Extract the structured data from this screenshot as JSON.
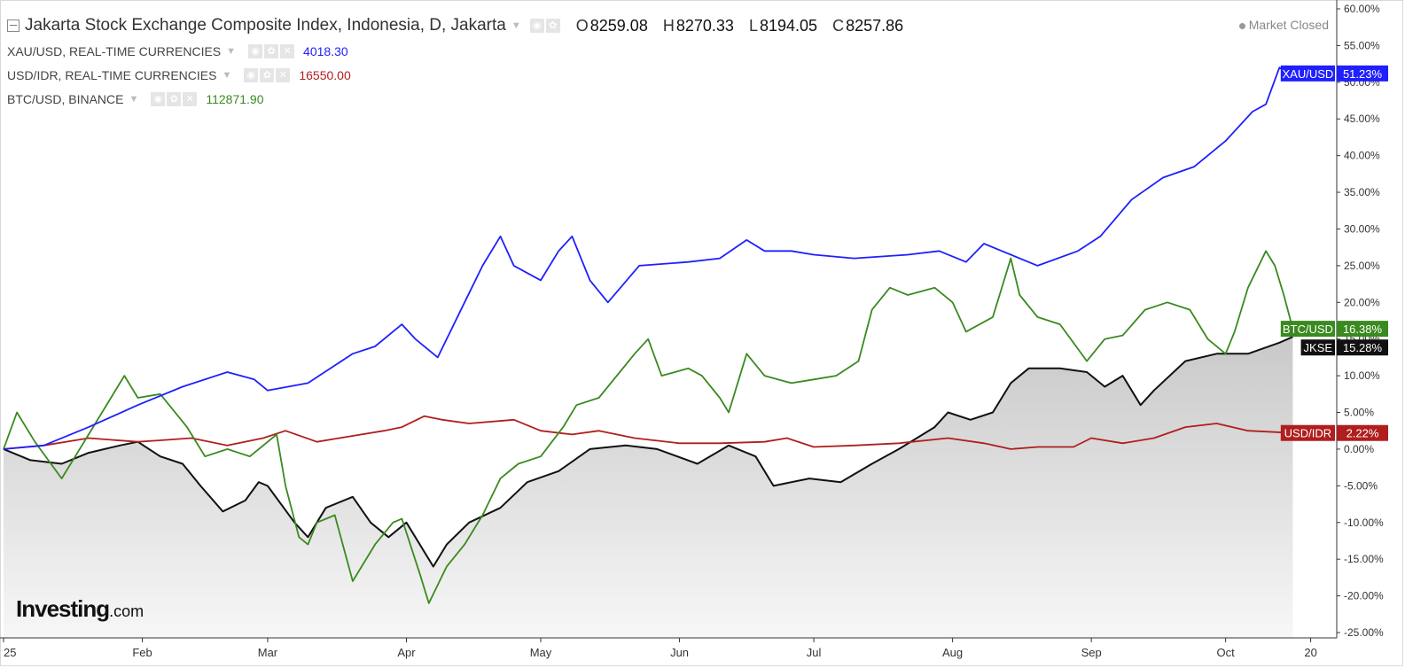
{
  "header": {
    "title": "Jakarta Stock Exchange Composite Index, Indonesia, D, Jakarta",
    "ohlc": [
      {
        "k": "O",
        "v": "8259.08"
      },
      {
        "k": "H",
        "v": "8270.33"
      },
      {
        "k": "L",
        "v": "8194.05"
      },
      {
        "k": "C",
        "v": "8257.86"
      }
    ],
    "status": "Market Closed"
  },
  "overlays": [
    {
      "label": "XAU/USD, REAL-TIME CURRENCIES",
      "value": "4018.30",
      "color": "#1f1fff"
    },
    {
      "label": "USD/IDR, REAL-TIME CURRENCIES",
      "value": "16550.00",
      "color": "#b01e1e"
    },
    {
      "label": "BTC/USD, BINANCE",
      "value": "112871.90",
      "color": "#3a8a1f"
    }
  ],
  "logo": {
    "main": "Investing",
    "suffix": ".com"
  },
  "icons": [
    "collapse-icon",
    "eye-icon",
    "gear-icon",
    "close-icon",
    "chevron-down-icon"
  ],
  "chart_data": {
    "type": "line",
    "ylabel": "",
    "ylim": [
      -25,
      60
    ],
    "x_axis": "date",
    "x_tick_labels": [
      "25",
      "Feb",
      "Mar",
      "Apr",
      "May",
      "Jun",
      "Jul",
      "Aug",
      "Sep",
      "Oct",
      "20"
    ],
    "y_tick_labels": [
      "60.00%",
      "55.00%",
      "50.00%",
      "45.00%",
      "40.00%",
      "35.00%",
      "30.00%",
      "25.00%",
      "20.00%",
      "15.00%",
      "10.00%",
      "5.00%",
      "0.00%",
      "-5.00%",
      "-10.00%",
      "-15.00%",
      "-20.00%",
      "-25.00%"
    ],
    "grid": false,
    "series": [
      {
        "name": "XAU/USD",
        "color": "#1f1fff",
        "end_label": "51.23%",
        "points": [
          [
            "2025-01-01",
            0
          ],
          [
            "2025-01-10",
            0.5
          ],
          [
            "2025-01-20",
            3
          ],
          [
            "2025-01-31",
            6
          ],
          [
            "2025-02-10",
            8.5
          ],
          [
            "2025-02-20",
            10.5
          ],
          [
            "2025-02-26",
            9.5
          ],
          [
            "2025-03-01",
            8
          ],
          [
            "2025-03-10",
            9
          ],
          [
            "2025-03-20",
            13
          ],
          [
            "2025-03-25",
            14
          ],
          [
            "2025-03-31",
            17
          ],
          [
            "2025-04-03",
            15
          ],
          [
            "2025-04-08",
            12.5
          ],
          [
            "2025-04-14",
            20
          ],
          [
            "2025-04-18",
            25
          ],
          [
            "2025-04-22",
            29
          ],
          [
            "2025-04-25",
            25
          ],
          [
            "2025-05-01",
            23
          ],
          [
            "2025-05-05",
            27
          ],
          [
            "2025-05-08",
            29
          ],
          [
            "2025-05-12",
            23
          ],
          [
            "2025-05-16",
            20
          ],
          [
            "2025-05-23",
            25
          ],
          [
            "2025-06-03",
            25.5
          ],
          [
            "2025-06-10",
            26
          ],
          [
            "2025-06-16",
            28.5
          ],
          [
            "2025-06-20",
            27
          ],
          [
            "2025-06-26",
            27
          ],
          [
            "2025-07-01",
            26.5
          ],
          [
            "2025-07-10",
            26
          ],
          [
            "2025-07-22",
            26.5
          ],
          [
            "2025-07-29",
            27
          ],
          [
            "2025-08-04",
            25.5
          ],
          [
            "2025-08-08",
            28
          ],
          [
            "2025-08-12",
            27
          ],
          [
            "2025-08-20",
            25
          ],
          [
            "2025-08-29",
            27
          ],
          [
            "2025-09-03",
            29
          ],
          [
            "2025-09-10",
            34
          ],
          [
            "2025-09-17",
            37
          ],
          [
            "2025-09-24",
            38.5
          ],
          [
            "2025-10-01",
            42
          ],
          [
            "2025-10-07",
            46
          ],
          [
            "2025-10-10",
            47
          ],
          [
            "2025-10-13",
            52
          ],
          [
            "2025-10-15",
            51.2
          ]
        ]
      },
      {
        "name": "BTC/USD",
        "color": "#3a8a1f",
        "end_label": "16.38%",
        "points": [
          [
            "2025-01-01",
            0
          ],
          [
            "2025-01-04",
            5
          ],
          [
            "2025-01-08",
            1
          ],
          [
            "2025-01-14",
            -4
          ],
          [
            "2025-01-20",
            2
          ],
          [
            "2025-01-28",
            10
          ],
          [
            "2025-01-31",
            7
          ],
          [
            "2025-02-05",
            7.5
          ],
          [
            "2025-02-11",
            3
          ],
          [
            "2025-02-15",
            -1
          ],
          [
            "2025-02-20",
            0
          ],
          [
            "2025-02-25",
            -1
          ],
          [
            "2025-03-03",
            2
          ],
          [
            "2025-03-05",
            -5
          ],
          [
            "2025-03-08",
            -12
          ],
          [
            "2025-03-10",
            -13
          ],
          [
            "2025-03-12",
            -10
          ],
          [
            "2025-03-16",
            -9
          ],
          [
            "2025-03-20",
            -18
          ],
          [
            "2025-03-25",
            -13
          ],
          [
            "2025-03-29",
            -10
          ],
          [
            "2025-03-31",
            -9.5
          ],
          [
            "2025-04-04",
            -17
          ],
          [
            "2025-04-06",
            -21
          ],
          [
            "2025-04-10",
            -16
          ],
          [
            "2025-04-14",
            -13
          ],
          [
            "2025-04-18",
            -9
          ],
          [
            "2025-04-22",
            -4
          ],
          [
            "2025-04-26",
            -2
          ],
          [
            "2025-05-01",
            -1
          ],
          [
            "2025-05-06",
            3
          ],
          [
            "2025-05-09",
            6
          ],
          [
            "2025-05-14",
            7
          ],
          [
            "2025-05-22",
            13
          ],
          [
            "2025-05-25",
            15
          ],
          [
            "2025-05-28",
            10
          ],
          [
            "2025-06-03",
            11
          ],
          [
            "2025-06-06",
            10
          ],
          [
            "2025-06-10",
            7
          ],
          [
            "2025-06-12",
            5
          ],
          [
            "2025-06-16",
            13
          ],
          [
            "2025-06-20",
            10
          ],
          [
            "2025-06-26",
            9
          ],
          [
            "2025-07-01",
            9.5
          ],
          [
            "2025-07-06",
            10
          ],
          [
            "2025-07-11",
            12
          ],
          [
            "2025-07-14",
            19
          ],
          [
            "2025-07-18",
            22
          ],
          [
            "2025-07-22",
            21
          ],
          [
            "2025-07-28",
            22
          ],
          [
            "2025-08-01",
            20
          ],
          [
            "2025-08-04",
            16
          ],
          [
            "2025-08-10",
            18
          ],
          [
            "2025-08-14",
            26
          ],
          [
            "2025-08-16",
            21
          ],
          [
            "2025-08-20",
            18
          ],
          [
            "2025-08-25",
            17
          ],
          [
            "2025-08-31",
            12
          ],
          [
            "2025-09-04",
            15
          ],
          [
            "2025-09-08",
            15.5
          ],
          [
            "2025-09-13",
            19
          ],
          [
            "2025-09-18",
            20
          ],
          [
            "2025-09-23",
            19
          ],
          [
            "2025-09-27",
            15
          ],
          [
            "2025-10-01",
            13
          ],
          [
            "2025-10-03",
            16
          ],
          [
            "2025-10-06",
            22
          ],
          [
            "2025-10-10",
            27
          ],
          [
            "2025-10-12",
            25
          ],
          [
            "2025-10-14",
            21
          ],
          [
            "2025-10-16",
            16.4
          ]
        ]
      },
      {
        "name": "USD/IDR",
        "color": "#b01e1e",
        "end_label": "2.22%",
        "points": [
          [
            "2025-01-01",
            0
          ],
          [
            "2025-01-10",
            0.5
          ],
          [
            "2025-01-20",
            1.5
          ],
          [
            "2025-01-31",
            1
          ],
          [
            "2025-02-05",
            1.2
          ],
          [
            "2025-02-12",
            1.5
          ],
          [
            "2025-02-20",
            0.5
          ],
          [
            "2025-02-28",
            1.5
          ],
          [
            "2025-03-05",
            2.5
          ],
          [
            "2025-03-12",
            1
          ],
          [
            "2025-03-20",
            1.8
          ],
          [
            "2025-03-27",
            2.5
          ],
          [
            "2025-03-31",
            3
          ],
          [
            "2025-04-05",
            4.5
          ],
          [
            "2025-04-09",
            4
          ],
          [
            "2025-04-15",
            3.5
          ],
          [
            "2025-04-25",
            4
          ],
          [
            "2025-05-01",
            2.5
          ],
          [
            "2025-05-08",
            2
          ],
          [
            "2025-05-14",
            2.5
          ],
          [
            "2025-05-22",
            1.5
          ],
          [
            "2025-06-01",
            0.8
          ],
          [
            "2025-06-10",
            0.8
          ],
          [
            "2025-06-20",
            1
          ],
          [
            "2025-06-25",
            1.5
          ],
          [
            "2025-07-01",
            0.3
          ],
          [
            "2025-07-10",
            0.5
          ],
          [
            "2025-07-20",
            0.8
          ],
          [
            "2025-07-31",
            1.5
          ],
          [
            "2025-08-08",
            0.8
          ],
          [
            "2025-08-14",
            0
          ],
          [
            "2025-08-20",
            0.3
          ],
          [
            "2025-08-28",
            0.3
          ],
          [
            "2025-09-01",
            1.5
          ],
          [
            "2025-09-08",
            0.8
          ],
          [
            "2025-09-15",
            1.5
          ],
          [
            "2025-09-22",
            3
          ],
          [
            "2025-09-29",
            3.5
          ],
          [
            "2025-10-06",
            2.5
          ],
          [
            "2025-10-16",
            2.2
          ]
        ]
      },
      {
        "name": "JKSE",
        "color": "#111111",
        "end_label": "15.28%",
        "points": [
          [
            "2025-01-01",
            0
          ],
          [
            "2025-01-07",
            -1.5
          ],
          [
            "2025-01-14",
            -2
          ],
          [
            "2025-01-20",
            -0.5
          ],
          [
            "2025-01-27",
            0.5
          ],
          [
            "2025-01-31",
            1
          ],
          [
            "2025-02-05",
            -1
          ],
          [
            "2025-02-10",
            -2
          ],
          [
            "2025-02-14",
            -5
          ],
          [
            "2025-02-19",
            -8.5
          ],
          [
            "2025-02-24",
            -7
          ],
          [
            "2025-02-27",
            -4.5
          ],
          [
            "2025-03-01",
            -5
          ],
          [
            "2025-03-07",
            -10
          ],
          [
            "2025-03-10",
            -12
          ],
          [
            "2025-03-14",
            -8
          ],
          [
            "2025-03-20",
            -6.5
          ],
          [
            "2025-03-24",
            -10
          ],
          [
            "2025-03-28",
            -12
          ],
          [
            "2025-04-01",
            -10
          ],
          [
            "2025-04-07",
            -16
          ],
          [
            "2025-04-10",
            -13
          ],
          [
            "2025-04-15",
            -10
          ],
          [
            "2025-04-22",
            -8
          ],
          [
            "2025-04-28",
            -4.5
          ],
          [
            "2025-05-05",
            -3
          ],
          [
            "2025-05-12",
            0
          ],
          [
            "2025-05-20",
            0.5
          ],
          [
            "2025-05-27",
            0
          ],
          [
            "2025-06-05",
            -2
          ],
          [
            "2025-06-12",
            0.5
          ],
          [
            "2025-06-18",
            -1
          ],
          [
            "2025-06-22",
            -5
          ],
          [
            "2025-06-30",
            -4
          ],
          [
            "2025-07-07",
            -4.5
          ],
          [
            "2025-07-14",
            -2
          ],
          [
            "2025-07-20",
            0
          ],
          [
            "2025-07-28",
            3
          ],
          [
            "2025-07-31",
            5
          ],
          [
            "2025-08-05",
            4
          ],
          [
            "2025-08-10",
            5
          ],
          [
            "2025-08-14",
            9
          ],
          [
            "2025-08-18",
            11
          ],
          [
            "2025-08-25",
            11
          ],
          [
            "2025-08-31",
            10.5
          ],
          [
            "2025-09-04",
            8.5
          ],
          [
            "2025-09-08",
            10
          ],
          [
            "2025-09-12",
            6
          ],
          [
            "2025-09-15",
            8
          ],
          [
            "2025-09-22",
            12
          ],
          [
            "2025-09-29",
            13
          ],
          [
            "2025-10-06",
            13
          ],
          [
            "2025-10-13",
            14.5
          ],
          [
            "2025-10-16",
            15.3
          ]
        ]
      }
    ]
  }
}
